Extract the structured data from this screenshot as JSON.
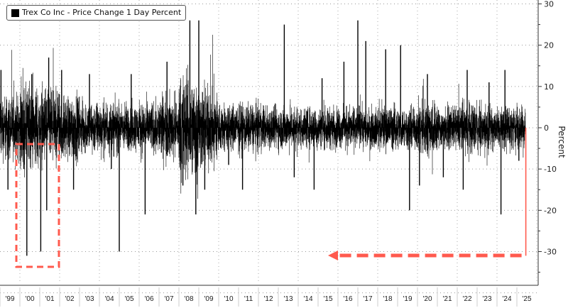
{
  "chart_data": {
    "type": "bar",
    "title": "Trex Co Inc - Price Change 1 Day Percent",
    "legend": [
      {
        "label": "Trex Co Inc - Price Change 1 Day Percent",
        "color": "#000000"
      }
    ],
    "legend_position": "top-left",
    "ylabel": "Percent",
    "ylim": [
      -40,
      30
    ],
    "yticks": [
      30,
      20,
      10,
      0,
      -10,
      -20,
      -30
    ],
    "xlim": [
      1999,
      2025.6
    ],
    "xtick_labels": [
      "'99",
      "'00",
      "'01",
      "'02",
      "'03",
      "'04",
      "'05",
      "'06",
      "'07",
      "'08",
      "'09",
      "'10",
      "'11",
      "'12",
      "'13",
      "'14",
      "'15",
      "'16",
      "'17",
      "'18",
      "'19",
      "'20",
      "'21",
      "'22",
      "'23",
      "'24",
      "'25"
    ],
    "grid": true,
    "typical_daily_range_by_year": {
      "1999": 8,
      "2000": 10,
      "2001": 9,
      "2002": 8,
      "2003": 6.5,
      "2004": 6.5,
      "2005": 6,
      "2006": 6.5,
      "2007": 8,
      "2008": 13,
      "2009": 10,
      "2010": 6,
      "2011": 6,
      "2012": 5.5,
      "2013": 5.5,
      "2014": 5,
      "2015": 5,
      "2016": 5,
      "2017": 5,
      "2018": 5.5,
      "2019": 5,
      "2020": 7,
      "2021": 5,
      "2022": 6.5,
      "2023": 5.5,
      "2024": 5.5,
      "2025": 6
    },
    "notable_moves": [
      {
        "x": 1999.05,
        "y": 14
      },
      {
        "x": 1999.4,
        "y": -15
      },
      {
        "x": 2000.2,
        "y": -10
      },
      {
        "x": 2000.35,
        "y": -31
      },
      {
        "x": 2000.6,
        "y": 13
      },
      {
        "x": 2001.05,
        "y": -30
      },
      {
        "x": 2001.35,
        "y": -20
      },
      {
        "x": 2001.45,
        "y": 17
      },
      {
        "x": 2002.1,
        "y": 14
      },
      {
        "x": 2002.7,
        "y": -15
      },
      {
        "x": 2003.5,
        "y": 13
      },
      {
        "x": 2004.6,
        "y": -10
      },
      {
        "x": 2005.0,
        "y": -30
      },
      {
        "x": 2005.6,
        "y": 13
      },
      {
        "x": 2006.3,
        "y": -21
      },
      {
        "x": 2007.4,
        "y": 16
      },
      {
        "x": 2008.2,
        "y": -14
      },
      {
        "x": 2008.55,
        "y": 26
      },
      {
        "x": 2008.85,
        "y": -21
      },
      {
        "x": 2009.0,
        "y": 26
      },
      {
        "x": 2009.3,
        "y": -15
      },
      {
        "x": 2010.5,
        "y": -9
      },
      {
        "x": 2011.2,
        "y": -15
      },
      {
        "x": 2013.3,
        "y": 25
      },
      {
        "x": 2013.8,
        "y": -12
      },
      {
        "x": 2014.8,
        "y": -15
      },
      {
        "x": 2015.2,
        "y": 12
      },
      {
        "x": 2016.3,
        "y": 16
      },
      {
        "x": 2017.0,
        "y": 26
      },
      {
        "x": 2017.4,
        "y": 21
      },
      {
        "x": 2018.4,
        "y": 19
      },
      {
        "x": 2019.15,
        "y": 20
      },
      {
        "x": 2019.6,
        "y": -20
      },
      {
        "x": 2020.1,
        "y": -14
      },
      {
        "x": 2020.5,
        "y": 13
      },
      {
        "x": 2021.3,
        "y": -12
      },
      {
        "x": 2022.5,
        "y": 14
      },
      {
        "x": 2022.3,
        "y": -15
      },
      {
        "x": 2023.6,
        "y": 11
      },
      {
        "x": 2024.2,
        "y": -21
      },
      {
        "x": 2024.4,
        "y": 14
      },
      {
        "x": 2025.1,
        "y": -8
      }
    ],
    "highlighted_move": {
      "x": 2025.45,
      "y": -31,
      "color": "#ff5a4e"
    },
    "annotations": [
      {
        "type": "dashed-box",
        "around": "2000-2001 drops near -30%",
        "color": "#ff5a4e"
      },
      {
        "type": "dashed-arrow",
        "from": 2025.45,
        "to": 2015.5,
        "at_y": -31,
        "color": "#ff5a4e"
      }
    ]
  }
}
